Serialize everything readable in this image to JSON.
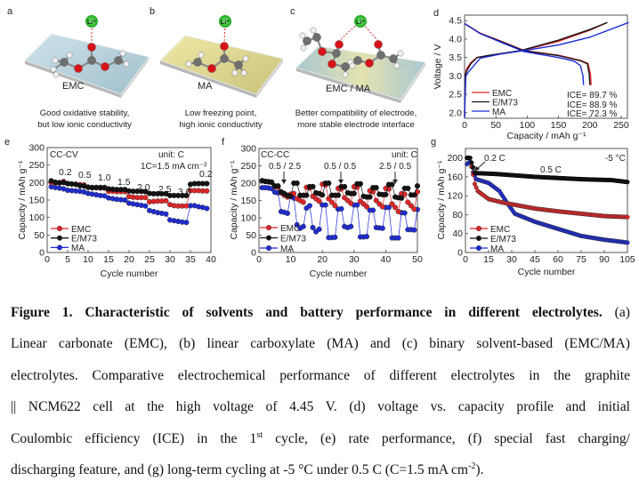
{
  "panels_top": {
    "li_label": "Li⁺",
    "a": {
      "letter": "a",
      "name": "EMC",
      "caption": [
        "Good oxidative stability,",
        "but low ionic conductivity"
      ]
    },
    "b": {
      "letter": "b",
      "name": "MA",
      "caption": [
        "Low freezing point,",
        "high ionic conductivity"
      ]
    },
    "c": {
      "letter": "c",
      "name": "EMC / MA",
      "caption": [
        "Better compatibility of electrode,",
        "more stable electrode interface"
      ]
    }
  },
  "colors": {
    "EMC": "#e32527",
    "E/M73": "#151515",
    "MA": "#1d2bd6"
  },
  "chart_data": [
    {
      "id": "d",
      "letter": "d",
      "type": "line",
      "xlabel": "Capacity / mAh g⁻¹",
      "ylabel": "Voltage / V",
      "xlim": [
        0,
        260
      ],
      "ylim": [
        1.85,
        4.65
      ],
      "xticks": [
        "0",
        "50",
        "100",
        "150",
        "200",
        "250"
      ],
      "yticks": [
        "2.0",
        "2.5",
        "3.0",
        "3.5",
        "4.0",
        "4.5"
      ],
      "legend": [
        "EMC",
        "E/M73",
        "MA"
      ],
      "annotations": [
        "ICE= 89.7 %",
        "ICE= 88.9 %",
        "ICE= 72.3 %"
      ],
      "series": [
        {
          "name": "EMC",
          "charge": [
            [
              0,
              1.9
            ],
            [
              1,
              3.0
            ],
            [
              3,
              3.18
            ],
            [
              10,
              3.36
            ],
            [
              20,
              3.5
            ],
            [
              40,
              3.56
            ],
            [
              90,
              3.68
            ],
            [
              150,
              3.94
            ],
            [
              200,
              4.24
            ],
            [
              228,
              4.45
            ]
          ],
          "discharge": [
            [
              0,
              4.42
            ],
            [
              25,
              4.16
            ],
            [
              60,
              3.93
            ],
            [
              95,
              3.69
            ],
            [
              150,
              3.56
            ],
            [
              185,
              3.42
            ],
            [
              197,
              3.34
            ],
            [
              201,
              3.05
            ],
            [
              202,
              2.75
            ]
          ]
        },
        {
          "name": "E/M73",
          "charge": [
            [
              0,
              1.9
            ],
            [
              1,
              3.0
            ],
            [
              3,
              3.12
            ],
            [
              10,
              3.33
            ],
            [
              20,
              3.5
            ],
            [
              40,
              3.56
            ],
            [
              90,
              3.69
            ],
            [
              150,
              3.97
            ],
            [
              200,
              4.26
            ],
            [
              228,
              4.45
            ]
          ],
          "discharge": [
            [
              0,
              4.42
            ],
            [
              25,
              4.15
            ],
            [
              60,
              3.92
            ],
            [
              95,
              3.68
            ],
            [
              150,
              3.55
            ],
            [
              185,
              3.41
            ],
            [
              196,
              3.33
            ],
            [
              199,
              3.05
            ],
            [
              200,
              2.75
            ]
          ]
        },
        {
          "name": "MA",
          "charge": [
            [
              0,
              1.85
            ],
            [
              2,
              3.0
            ],
            [
              6,
              3.1
            ],
            [
              25,
              3.48
            ],
            [
              60,
              3.6
            ],
            [
              100,
              3.7
            ],
            [
              150,
              3.84
            ],
            [
              200,
              4.05
            ],
            [
              262,
              4.45
            ]
          ],
          "discharge": [
            [
              0,
              4.42
            ],
            [
              25,
              4.15
            ],
            [
              60,
              3.9
            ],
            [
              95,
              3.66
            ],
            [
              150,
              3.5
            ],
            [
              175,
              3.4
            ],
            [
              185,
              3.28
            ],
            [
              189,
              3.0
            ],
            [
              190,
              2.75
            ]
          ]
        }
      ]
    },
    {
      "id": "e",
      "letter": "e",
      "type": "scatter-line",
      "xlabel": "Cycle number",
      "ylabel": "Capacity / mAh g⁻¹",
      "xlim": [
        0,
        40
      ],
      "ylim": [
        0,
        300
      ],
      "xticks": [
        "0",
        "5",
        "10",
        "15",
        "20",
        "25",
        "30",
        "35",
        "40"
      ],
      "yticks": [
        "0",
        "50",
        "100",
        "150",
        "200",
        "250",
        "300"
      ],
      "legend": [
        "EMC",
        "E/M73",
        "MA"
      ],
      "annotations": [
        "CC-CV",
        "unit: C",
        "1C=1.5 mA cm⁻²"
      ],
      "rate_labels": [
        "0.2",
        "0.5",
        "1.0",
        "1.5",
        "2.0",
        "2.5",
        "3.0",
        "0.2"
      ],
      "series": [
        {
          "name": "EMC",
          "values": [
            200,
            199,
            200,
            203,
            197,
            196,
            195,
            194,
            193,
            186,
            185,
            185,
            184,
            184,
            175,
            175,
            174,
            174,
            174,
            160,
            158,
            157,
            157,
            157,
            145,
            146,
            147,
            147,
            148,
            137,
            134,
            133,
            133,
            133,
            177,
            177,
            177,
            176,
            176
          ]
        },
        {
          "name": "E/M73",
          "values": [
            205,
            201,
            199,
            200,
            197,
            196,
            195,
            191,
            190,
            187,
            186,
            186,
            186,
            186,
            182,
            181,
            180,
            180,
            180,
            176,
            175,
            175,
            175,
            174,
            169,
            168,
            168,
            168,
            168,
            163,
            163,
            163,
            163,
            163,
            195,
            197,
            197,
            197,
            197
          ]
        },
        {
          "name": "MA",
          "values": [
            188,
            186,
            184,
            182,
            178,
            177,
            176,
            175,
            173,
            169,
            167,
            165,
            163,
            162,
            156,
            154,
            152,
            151,
            150,
            141,
            139,
            137,
            135,
            133,
            120,
            117,
            114,
            112,
            110,
            93,
            91,
            89,
            87,
            86,
            134,
            134,
            131,
            129,
            126
          ]
        }
      ]
    },
    {
      "id": "f",
      "letter": "f",
      "type": "scatter-line",
      "xlabel": "Cycle number",
      "ylabel": "Capacity / mAh g⁻¹",
      "xlim": [
        0,
        50
      ],
      "ylim": [
        0,
        300
      ],
      "xticks": [
        "0",
        "10",
        "20",
        "30",
        "40",
        "50"
      ],
      "yticks": [
        "0",
        "50",
        "100",
        "150",
        "200",
        "250",
        "300"
      ],
      "legend": [
        "EMC",
        "E/M73",
        "MA"
      ],
      "annotations": [
        "CC-CC",
        "unit: C",
        "0.5 / 2.5",
        "0.5 / 0.5",
        "2.5 / 0.5"
      ],
      "series": [
        {
          "name": "EMC",
          "values": [
            207,
            205,
            204,
            202,
            190,
            188,
            172,
            165,
            160,
            168,
            170,
            155,
            150,
            145,
            188,
            186,
            162,
            155,
            148,
            197,
            195,
            155,
            145,
            135,
            185,
            183,
            158,
            150,
            142,
            190,
            188,
            148,
            140,
            132,
            178,
            175,
            150,
            140,
            132,
            185,
            183,
            140,
            130,
            118,
            170,
            168,
            145,
            135,
            125,
            175
          ]
        },
        {
          "name": "E/M73",
          "values": [
            207,
            205,
            204,
            203,
            192,
            192,
            175,
            170,
            165,
            162,
            200,
            200,
            165,
            165,
            165,
            190,
            190,
            172,
            170,
            166,
            200,
            200,
            165,
            165,
            165,
            190,
            190,
            172,
            170,
            170,
            198,
            198,
            162,
            160,
            160,
            187,
            187,
            168,
            167,
            167,
            196,
            196,
            160,
            158,
            157,
            185,
            185,
            166,
            166,
            192
          ]
        },
        {
          "name": "MA",
          "values": [
            187,
            187,
            186,
            184,
            174,
            172,
            118,
            116,
            113,
            165,
            157,
            80,
            70,
            75,
            128,
            135,
            72,
            60,
            67,
            137,
            137,
            43,
            43,
            44,
            125,
            126,
            75,
            72,
            75,
            137,
            137,
            45,
            45,
            46,
            122,
            122,
            72,
            71,
            70,
            130,
            130,
            42,
            42,
            42,
            115,
            114,
            66,
            66,
            65,
            124
          ]
        }
      ]
    },
    {
      "id": "g",
      "letter": "g",
      "type": "scatter-line",
      "xlabel": "Cycle number",
      "ylabel": "Capacity / mAh g⁻¹",
      "xlim": [
        0,
        105
      ],
      "ylim": [
        0,
        220
      ],
      "xticks": [
        "0",
        "15",
        "30",
        "45",
        "60",
        "75",
        "90",
        "105"
      ],
      "yticks": [
        "0",
        "40",
        "80",
        "120",
        "160",
        "200"
      ],
      "legend": [
        "EMC",
        "E/M73",
        "MA"
      ],
      "annotations": [
        "0.2 C",
        "0.5 C",
        "-5 °C"
      ],
      "cycles": 105,
      "series": [
        {
          "name": "EMC",
          "keypoints": [
            [
              1,
              200
            ],
            [
              3,
              200
            ],
            [
              5,
              165
            ],
            [
              6,
              145
            ],
            [
              8,
              130
            ],
            [
              15,
              113
            ],
            [
              25,
              105
            ],
            [
              45,
              93
            ],
            [
              60,
              87
            ],
            [
              75,
              82
            ],
            [
              90,
              77
            ],
            [
              105,
              75
            ]
          ]
        },
        {
          "name": "E/M73",
          "keypoints": [
            [
              1,
              200
            ],
            [
              3,
              200
            ],
            [
              5,
              180
            ],
            [
              6,
              168
            ],
            [
              20,
              166
            ],
            [
              45,
              160
            ],
            [
              75,
              155
            ],
            [
              95,
              153
            ],
            [
              105,
              149
            ]
          ]
        },
        {
          "name": "MA",
          "keypoints": [
            [
              1,
              187
            ],
            [
              3,
              192
            ],
            [
              5,
              170
            ],
            [
              7,
              155
            ],
            [
              15,
              147
            ],
            [
              22,
              130
            ],
            [
              27,
              105
            ],
            [
              32,
              82
            ],
            [
              45,
              65
            ],
            [
              60,
              50
            ],
            [
              75,
              35
            ],
            [
              90,
              27
            ],
            [
              105,
              21
            ]
          ]
        }
      ]
    }
  ],
  "caption": {
    "l1_bold": "Figure 1. Characteristic of solvents and battery performance in different electrolytes.",
    "l1_rest": " (a)",
    "l2": "Linear carbonate (EMC), (b) linear carboxylate (MA) and (c) binary solvent-based (EMC/MA)",
    "l3": "electrolytes. Comparative electrochemical performance of different electrolytes in the graphite",
    "l4": "|| NCM622 cell at the high voltage of 4.45 V. (d) voltage vs. capacity profile and initial",
    "l5a": "Coulombic efficiency (ICE) in the 1",
    "l5sup": "st",
    "l5b": " cycle, (e) rate performance, (f) special fast charging/",
    "l6a": "discharging feature, and (g) long-term cycling at -5 °C under 0.5 C (C=1.5 mA cm",
    "l6sup": "-2",
    "l6b": ")."
  }
}
